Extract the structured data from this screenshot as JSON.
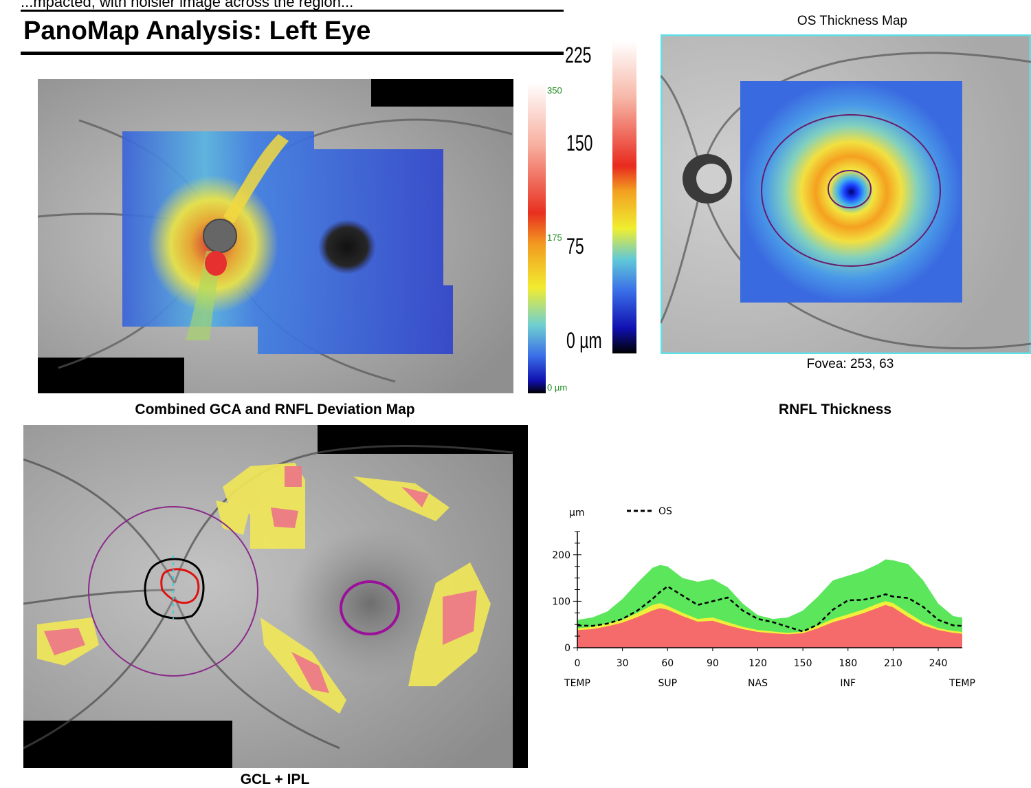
{
  "header": {
    "clipped_text": "...mpacted, with noisier image across the region...",
    "title": "PanoMap Analysis: Left Eye"
  },
  "panomap": {
    "caption": "Combined GCA and RNFL Deviation Map",
    "scale_small": {
      "top": "350",
      "mid": "175",
      "bottom": "0 µm"
    },
    "scale_large": {
      "top": "225",
      "upper": "150",
      "lower": "75",
      "bottom": "0 µm"
    }
  },
  "thickness_map": {
    "title": "OS Thickness Map",
    "fovea_label": "Fovea: 253, 63",
    "frame_color": "#5fe0e8"
  },
  "gcl_map": {
    "caption": "GCL + IPL"
  },
  "rnfl": {
    "title": "RNFL Thickness",
    "chart_data": {
      "type": "area",
      "unit_label": "µm",
      "legend": [
        {
          "name": "OS",
          "style": "dashed",
          "color": "#000000"
        }
      ],
      "x_ticks": [
        "0",
        "30",
        "60",
        "90",
        "120",
        "150",
        "180",
        "210",
        "240"
      ],
      "y_ticks": [
        "0",
        "100",
        "200"
      ],
      "sector_labels": [
        "TEMP",
        "SUP",
        "NAS",
        "INF",
        "TEMP"
      ],
      "xlim": [
        0,
        256
      ],
      "ylim": [
        0,
        250
      ],
      "x": [
        0,
        10,
        20,
        30,
        40,
        50,
        55,
        60,
        70,
        80,
        90,
        100,
        110,
        120,
        130,
        140,
        150,
        160,
        170,
        180,
        190,
        200,
        205,
        210,
        220,
        230,
        240,
        250,
        256
      ],
      "series": [
        {
          "name": "OS",
          "values": [
            48,
            47,
            52,
            62,
            80,
            105,
            120,
            132,
            112,
            92,
            100,
            108,
            80,
            62,
            55,
            45,
            35,
            50,
            82,
            102,
            103,
            110,
            115,
            110,
            107,
            88,
            60,
            48,
            47
          ]
        }
      ],
      "bands": {
        "upper_green": [
          60,
          65,
          78,
          105,
          140,
          172,
          178,
          175,
          150,
          142,
          148,
          130,
          95,
          70,
          62,
          65,
          80,
          110,
          145,
          155,
          165,
          180,
          190,
          188,
          180,
          145,
          95,
          68,
          65
        ],
        "upper_yellow": [
          42,
          45,
          52,
          60,
          75,
          92,
          96,
          90,
          75,
          62,
          65,
          55,
          45,
          38,
          35,
          32,
          35,
          48,
          62,
          72,
          82,
          95,
          100,
          96,
          75,
          55,
          42,
          36,
          34
        ],
        "lower_red": [
          38,
          40,
          46,
          54,
          66,
          80,
          85,
          82,
          68,
          56,
          58,
          48,
          40,
          34,
          31,
          29,
          31,
          42,
          55,
          64,
          74,
          86,
          92,
          87,
          66,
          48,
          38,
          32,
          30
        ]
      },
      "colors": {
        "green": "#5ce65c",
        "yellow": "#f0f03a",
        "red": "#f56a6a"
      }
    }
  }
}
